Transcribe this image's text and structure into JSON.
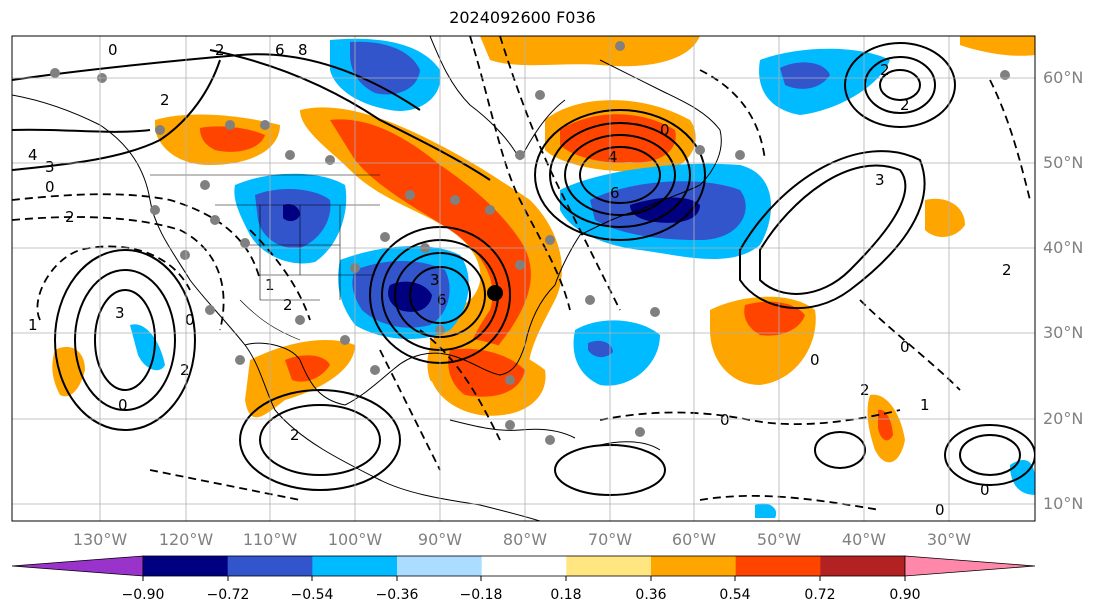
{
  "title": "2024092600 F036",
  "map": {
    "lon_labels": [
      "130°W",
      "120°W",
      "110°W",
      "100°W",
      "90°W",
      "80°W",
      "70°W",
      "60°W",
      "50°W",
      "40°W",
      "30°W"
    ],
    "lat_labels": [
      "60°N",
      "50°N",
      "40°N",
      "30°N",
      "20°N",
      "10°N"
    ],
    "grid": true,
    "contour_labels": [
      "0",
      "2",
      "6",
      "8",
      "4",
      "3",
      "2",
      "0",
      "2",
      "1",
      "2",
      "3",
      "0",
      "1",
      "2",
      "3",
      "2",
      "6",
      "0",
      "2",
      "3",
      "4",
      "6",
      "0",
      "0",
      "2",
      "0",
      "1",
      "0",
      "2",
      "2",
      "0",
      "0"
    ],
    "colors": {
      "purple": "#9933cc",
      "navy": "#000080",
      "royal": "#3355cc",
      "sky": "#00bbff",
      "light_blue": "#aaddff",
      "yellow": "#ffe680",
      "orange": "#ffa500",
      "red_orange": "#ff4400",
      "dark_red": "#b22222",
      "pink": "#ff88aa"
    }
  },
  "colorbar": {
    "labels": [
      "−0.90",
      "−0.72",
      "−0.54",
      "−0.36",
      "−0.18",
      "0.18",
      "0.36",
      "0.54",
      "0.72",
      "0.90"
    ],
    "colors": [
      "#000080",
      "#3355cc",
      "#00bbff",
      "#aaddff",
      "#ffffff",
      "#ffe680",
      "#ffa500",
      "#ff4400",
      "#b22222"
    ],
    "under_color": "#9933cc",
    "over_color": "#ff88aa"
  }
}
